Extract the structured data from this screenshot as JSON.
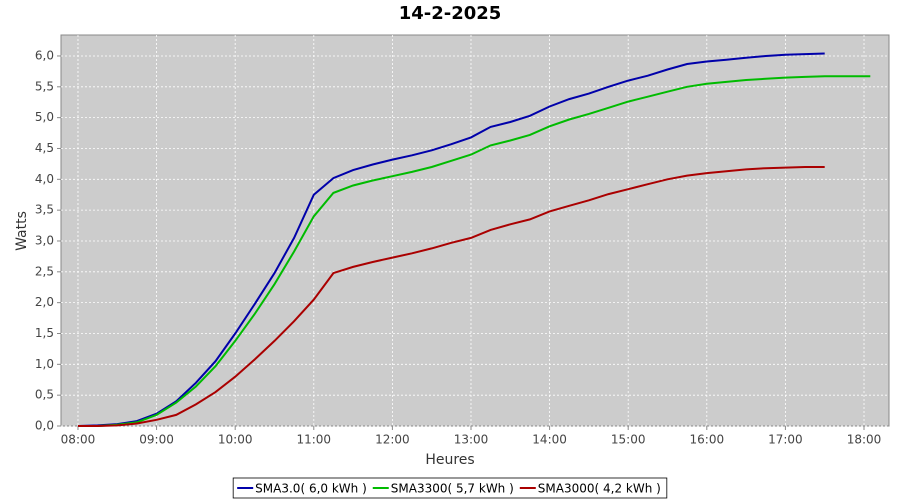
{
  "chart_data": {
    "type": "line",
    "title": "14-2-2025",
    "x_label": "Heures",
    "y_label": "Watts",
    "x": [
      8,
      8.25,
      8.5,
      8.75,
      9,
      9.25,
      9.5,
      9.75,
      10,
      10.25,
      10.5,
      10.75,
      11,
      11.25,
      11.5,
      11.75,
      12,
      12.25,
      12.5,
      12.75,
      13,
      13.25,
      13.5,
      13.75,
      14,
      14.25,
      14.5,
      14.75,
      15,
      15.25,
      15.5,
      15.75,
      16,
      16.25,
      16.5,
      16.75,
      17,
      17.25,
      17.5,
      17.75,
      18,
      18.08
    ],
    "series": [
      {
        "name": "SMA3.0( 6,0 kWh )",
        "color": "#0000aa",
        "values": [
          0,
          0.01,
          0.03,
          0.08,
          0.2,
          0.4,
          0.7,
          1.05,
          1.5,
          1.98,
          2.48,
          3.05,
          3.75,
          4.02,
          4.15,
          4.24,
          4.32,
          4.39,
          4.47,
          4.57,
          4.68,
          4.85,
          4.93,
          5.03,
          5.18,
          5.3,
          5.39,
          5.5,
          5.6,
          5.68,
          5.78,
          5.87,
          5.91,
          5.94,
          5.97,
          6.0,
          6.02,
          6.03,
          6.04,
          null,
          null,
          null
        ]
      },
      {
        "name": "SMA3300( 5,7 kWh )",
        "color": "#00bb00",
        "values": [
          0,
          0,
          0.02,
          0.06,
          0.18,
          0.38,
          0.64,
          0.97,
          1.38,
          1.82,
          2.3,
          2.83,
          3.4,
          3.78,
          3.9,
          3.98,
          4.05,
          4.12,
          4.2,
          4.3,
          4.4,
          4.55,
          4.63,
          4.72,
          4.86,
          4.97,
          5.06,
          5.16,
          5.26,
          5.34,
          5.42,
          5.5,
          5.55,
          5.58,
          5.61,
          5.63,
          5.65,
          5.66,
          5.67,
          5.67,
          5.67,
          5.67
        ]
      },
      {
        "name": "SMA3000( 4,2 kWh )",
        "color": "#aa0000",
        "values": [
          0,
          0,
          0.01,
          0.04,
          0.1,
          0.18,
          0.35,
          0.55,
          0.8,
          1.08,
          1.38,
          1.7,
          2.05,
          2.48,
          2.58,
          2.66,
          2.73,
          2.8,
          2.88,
          2.97,
          3.05,
          3.18,
          3.27,
          3.35,
          3.48,
          3.57,
          3.66,
          3.76,
          3.84,
          3.92,
          4.0,
          4.06,
          4.1,
          4.13,
          4.16,
          4.18,
          4.19,
          4.2,
          4.2,
          null,
          null,
          null
        ]
      }
    ],
    "xlim": [
      7.784,
      18.318
    ],
    "xticks": [
      {
        "value": 8,
        "label": "08:00"
      },
      {
        "value": 9,
        "label": "09:00"
      },
      {
        "value": 10,
        "label": "10:00"
      },
      {
        "value": 11,
        "label": "11:00"
      },
      {
        "value": 12,
        "label": "12:00"
      },
      {
        "value": 13,
        "label": "13:00"
      },
      {
        "value": 14,
        "label": "14:00"
      },
      {
        "value": 15,
        "label": "15:00"
      },
      {
        "value": 16,
        "label": "16:00"
      },
      {
        "value": 17,
        "label": "17:00"
      },
      {
        "value": 18,
        "label": "18:00"
      }
    ],
    "ylim": [
      0,
      6.34
    ],
    "yticks": [
      {
        "value": 0,
        "label": "0,0"
      },
      {
        "value": 0.5,
        "label": "0,5"
      },
      {
        "value": 1,
        "label": "1,0"
      },
      {
        "value": 1.5,
        "label": "1,5"
      },
      {
        "value": 2,
        "label": "2,0"
      },
      {
        "value": 2.5,
        "label": "2,5"
      },
      {
        "value": 3,
        "label": "3,0"
      },
      {
        "value": 3.5,
        "label": "3,5"
      },
      {
        "value": 4,
        "label": "4,0"
      },
      {
        "value": 4.5,
        "label": "4,5"
      },
      {
        "value": 5,
        "label": "5,0"
      },
      {
        "value": 5.5,
        "label": "5,5"
      },
      {
        "value": 6,
        "label": "6,0"
      }
    ],
    "grid": true,
    "legend": "bottom",
    "plot_background": "#cccccc"
  }
}
